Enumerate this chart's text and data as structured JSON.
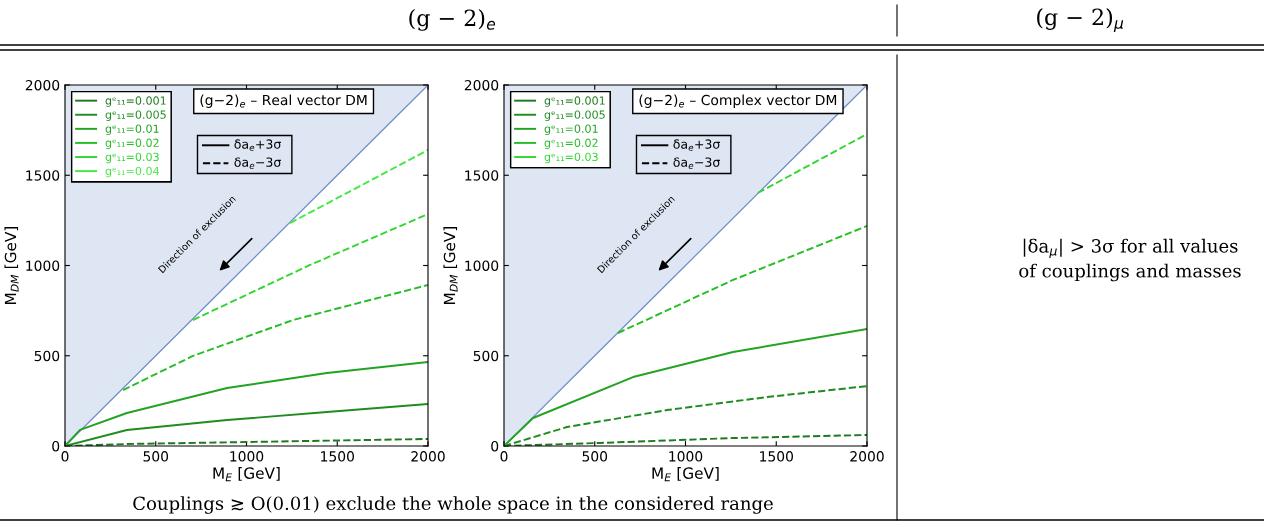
{
  "chart_data": [
    {
      "type": "other",
      "annotations": [
        "(g − 2)$_{e}$",
        "(g − 2)$_{μ}$",
        "|δa$_{μ}$| > 3σ for all values\nof couplings and masses",
        "Couplings ≳ O(0.01) exclude the whole space in the considered range"
      ]
    },
    {
      "type": "line",
      "title": "(g−2)$_{e}$ – Real vector DM",
      "xlabel": "M$_{E}$ [GeV]",
      "ylabel": "M$_{DM}$ [GeV]",
      "xlim": [
        0,
        2000
      ],
      "ylim": [
        0,
        2000
      ],
      "xticks": [
        0,
        500,
        1000,
        1500,
        2000
      ],
      "yticks": [
        0,
        500,
        1000,
        1500,
        2000
      ],
      "legend": "top left",
      "grid": false,
      "annotations": [
        "Direction of exclusion",
        "δa$_{e}$+3σ",
        "δa$_{e}$−3σ"
      ],
      "series": [
        {
          "type": "line",
          "color": "#6f8fc8",
          "x": [
            0,
            500,
            1000,
            1500,
            2000
          ],
          "values": [
            0,
            500,
            1000,
            1500,
            2000
          ],
          "lower": [
            0,
            500,
            1000,
            1500,
            2000
          ],
          "upper": [
            2000,
            2000,
            2000,
            2000,
            2000
          ]
        },
        {
          "name": "gᵉ₁₁=0.001",
          "color": "#1f7a1f",
          "line_style": "dashed",
          "x": [
            0,
            341,
            1000,
            2000
          ],
          "values": [
            0,
            11,
            22,
            39
          ]
        },
        {
          "name": "gᵉ₁₁=0.005",
          "color": "#1f8c1f",
          "line_style": "solid",
          "x": [
            0,
            341,
            893,
            1443,
            2000
          ],
          "values": [
            0,
            89,
            144,
            188,
            233
          ]
        },
        {
          "name": "gᵉ₁₁=0.01",
          "color": "#22a322",
          "line_style": "solid",
          "x": [
            0,
            83,
            341,
            893,
            1443,
            2000
          ],
          "values": [
            0,
            89,
            183,
            321,
            404,
            465
          ]
        },
        {
          "name": "gᵉ₁₁=0.02",
          "color": "#26bd26",
          "line_style": "dashed",
          "x": [
            320,
            705,
            1256,
            2000
          ],
          "values": [
            310,
            499,
            698,
            892
          ]
        },
        {
          "name": "gᵉ₁₁=0.03",
          "color": "#33d633",
          "line_style": "dashed",
          "x": [
            705,
            1350,
            2000
          ],
          "values": [
            698,
            1003,
            1285
          ]
        },
        {
          "name": "gᵉ₁₁=0.04",
          "color": "#44e844",
          "line_style": "dashed",
          "x": [
            1240,
            1625,
            2000
          ],
          "values": [
            1235,
            1440,
            1640
          ]
        }
      ]
    },
    {
      "type": "line",
      "title": "(g−2)$_{e}$ – Complex vector DM",
      "xlabel": "M$_{E}$ [GeV]",
      "ylabel": "M$_{DM}$ [GeV]",
      "xlim": [
        0,
        2000
      ],
      "ylim": [
        0,
        2000
      ],
      "xticks": [
        0,
        500,
        1000,
        1500,
        2000
      ],
      "yticks": [
        0,
        500,
        1000,
        1500,
        2000
      ],
      "legend": "top left",
      "grid": false,
      "annotations": [
        "Direction of exclusion",
        "δa$_{e}$+3σ",
        "δa$_{e}$−3σ"
      ],
      "series": [
        {
          "type": "line",
          "color": "#6f8fc8",
          "x": [
            0,
            500,
            1000,
            1500,
            2000
          ],
          "values": [
            0,
            500,
            1000,
            1500,
            2000
          ],
          "lower": [
            0,
            500,
            1000,
            1500,
            2000
          ],
          "upper": [
            2000,
            2000,
            2000,
            2000,
            2000
          ]
        },
        {
          "name": "gᵉ₁₁=0.001",
          "color": "#1f7a1f",
          "line_style": "dashed",
          "x": [
            0,
            529,
            1262,
            2000
          ],
          "values": [
            0,
            17,
            44,
            61
          ]
        },
        {
          "name": "gᵉ₁₁=0.005",
          "color": "#1f8c1f",
          "line_style": "dashed",
          "x": [
            0,
            347,
            898,
            1449,
            2000
          ],
          "values": [
            0,
            105,
            199,
            271,
            332
          ]
        },
        {
          "name": "gᵉ₁₁=0.01",
          "color": "#22a322",
          "line_style": "solid",
          "x": [
            0,
            160,
            711,
            1262,
            2000
          ],
          "values": [
            0,
            155,
            382,
            521,
            648
          ]
        },
        {
          "name": "gᵉ₁₁=0.02",
          "color": "#26bd26",
          "line_style": "dashed",
          "x": [
            628,
            1262,
            2000
          ],
          "values": [
            626,
            920,
            1219
          ]
        },
        {
          "name": "gᵉ₁₁=0.03",
          "color": "#33d633",
          "line_style": "dashed",
          "x": [
            1399,
            2000
          ],
          "values": [
            1402,
            1728
          ]
        }
      ]
    }
  ]
}
